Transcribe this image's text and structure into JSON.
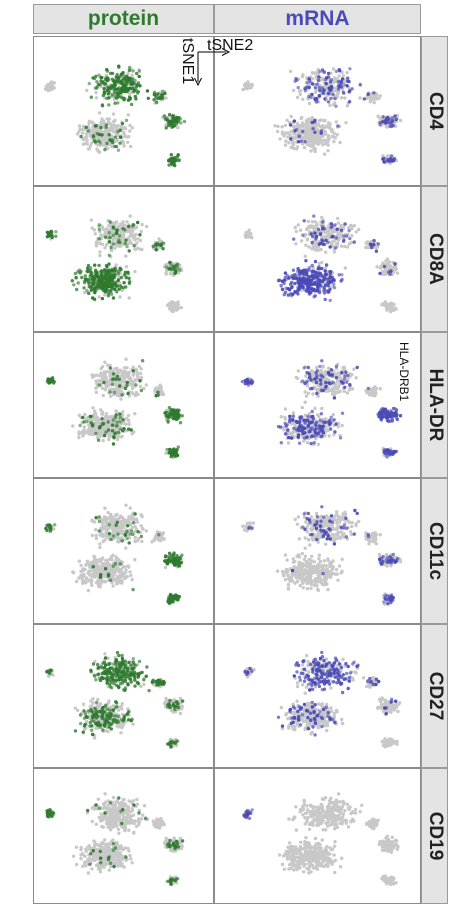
{
  "columns": [
    {
      "label": "protein",
      "color": "#2e7a2e"
    },
    {
      "label": "mRNA",
      "color": "#4a4ab8"
    }
  ],
  "markers": [
    {
      "label": "CD4",
      "mrna_note": ""
    },
    {
      "label": "CD8A",
      "mrna_note": ""
    },
    {
      "label": "HLA-DR",
      "mrna_note": "HLA-DRB1"
    },
    {
      "label": "CD11c",
      "mrna_note": ""
    },
    {
      "label": "CD27",
      "mrna_note": ""
    },
    {
      "label": "CD19",
      "mrna_note": ""
    }
  ],
  "axes": {
    "x_label": "tSNE2",
    "y_label": "tSNE1"
  },
  "colors": {
    "background_cells": "#c8c8c8",
    "protein": "#2e7a2e",
    "mrna": "#4a4ab8",
    "strip_bg": "#e4e4e4"
  }
}
